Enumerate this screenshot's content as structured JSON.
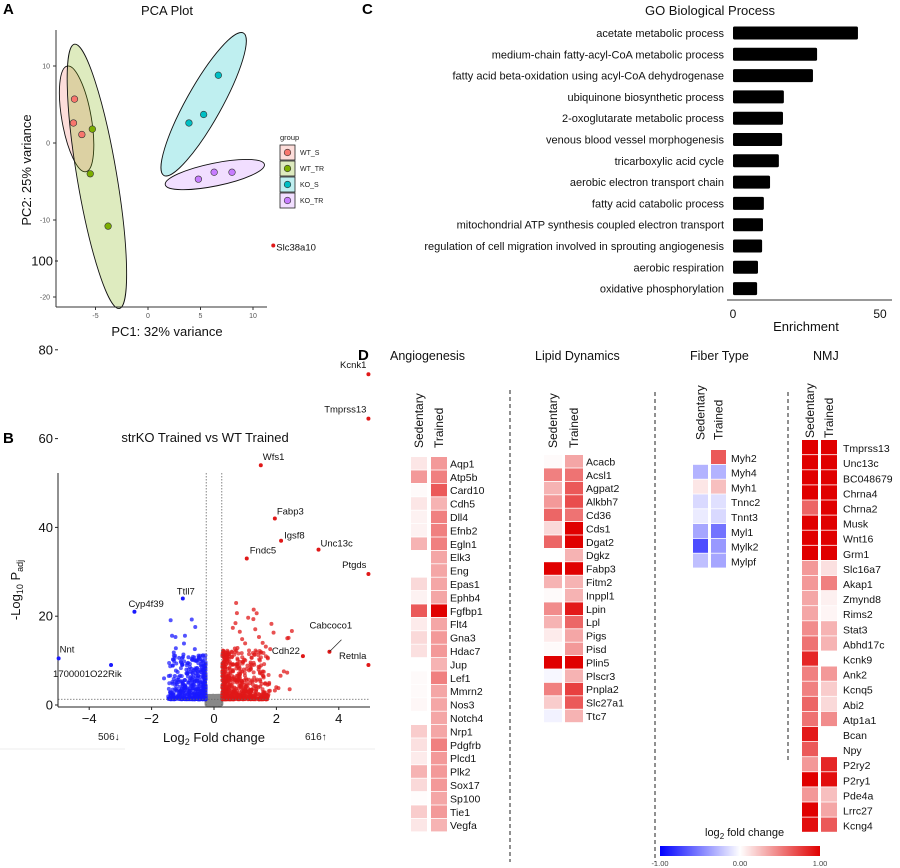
{
  "panel_letters": {
    "a": "A",
    "b": "B",
    "c": "C",
    "d": "D"
  },
  "chart_data": [
    {
      "id": "pca",
      "type": "scatter",
      "title": "PCA Plot",
      "xlabel": "PC1: 32% variance",
      "ylabel": "PC2: 25% variance",
      "xlim": [
        -8.5,
        11
      ],
      "ylim": [
        -21.5,
        14
      ],
      "xticks": [
        -5,
        0,
        5,
        10
      ],
      "yticks": [
        10,
        0,
        -10,
        -20
      ],
      "grid": false,
      "legend": {
        "title": "group",
        "placement": "right"
      },
      "ellipses": true,
      "series": [
        {
          "name": "WT_S",
          "color": "#F8766D",
          "points": [
            [
              -7.0,
              5.7
            ],
            [
              -7.1,
              2.6
            ],
            [
              -6.3,
              1.1
            ]
          ]
        },
        {
          "name": "WT_TR",
          "color": "#7CAE00",
          "points": [
            [
              -5.3,
              1.8
            ],
            [
              -5.5,
              -4.0
            ],
            [
              -3.8,
              -10.8
            ]
          ]
        },
        {
          "name": "KO_S",
          "color": "#00BFC4",
          "points": [
            [
              3.9,
              2.6
            ],
            [
              5.3,
              3.7
            ],
            [
              6.7,
              8.8
            ]
          ]
        },
        {
          "name": "KO_TR",
          "color": "#C77CFF",
          "points": [
            [
              4.8,
              -4.7
            ],
            [
              6.3,
              -3.8
            ],
            [
              8.0,
              -3.8
            ]
          ]
        }
      ]
    },
    {
      "id": "volcano",
      "type": "scatter",
      "title": "strKO Trained vs WT Trained",
      "xlabel": "Log2 Fold change",
      "ylabel": "-Log10 Padj",
      "xlim": [
        -5,
        5
      ],
      "ylim": [
        0,
        105
      ],
      "xticks": [
        -4,
        -2,
        0,
        2,
        4
      ],
      "yticks": [
        0,
        20,
        40,
        60,
        80,
        100
      ],
      "fc_threshold": 0.25,
      "padj_threshold_line": 1.3,
      "colors": {
        "down": "#1a1aff",
        "up": "#e01818",
        "ns": "#888888"
      },
      "counts": {
        "down": "506↓",
        "up": "616↑"
      },
      "labeled_points": [
        {
          "gene": "Slc38a10",
          "x": 1.9,
          "y": 103.5
        },
        {
          "gene": "Kcnk1",
          "x": 4.95,
          "y": 74.5
        },
        {
          "gene": "Tmprss13",
          "x": 4.95,
          "y": 64.5
        },
        {
          "gene": "Wfs1",
          "x": 1.5,
          "y": 54
        },
        {
          "gene": "Fabp3",
          "x": 1.95,
          "y": 42
        },
        {
          "gene": "Igsf8",
          "x": 2.15,
          "y": 37
        },
        {
          "gene": "Fndc5",
          "x": 1.05,
          "y": 33
        },
        {
          "gene": "Unc13c",
          "x": 3.35,
          "y": 35
        },
        {
          "gene": "Ptgds",
          "x": 4.95,
          "y": 29.5
        },
        {
          "gene": "Cabcoco1",
          "x": 3.7,
          "y": 12
        },
        {
          "gene": "Cdh22",
          "x": 2.85,
          "y": 11
        },
        {
          "gene": "Retnla",
          "x": 4.95,
          "y": 9
        },
        {
          "gene": "Cyp4f39",
          "x": -2.55,
          "y": 21
        },
        {
          "gene": "Ttll7",
          "x": -1.0,
          "y": 24
        },
        {
          "gene": "Nnt",
          "x": -4.98,
          "y": 10.5
        },
        {
          "gene": "1700001O22Rik",
          "x": -3.3,
          "y": 9
        }
      ]
    },
    {
      "id": "go",
      "type": "bar",
      "orientation": "horizontal",
      "title": "GO Biological Process",
      "xlabel": "Enrichment",
      "xlim": [
        0,
        55
      ],
      "xticks": [
        0,
        50
      ],
      "color": "#000000",
      "categories": [
        "acetate metabolic process",
        "medium-chain fatty-acyl-CoA metabolic process",
        "fatty acid beta-oxidation using acyl-CoA dehydrogenase",
        "ubiquinone biosynthetic process",
        "2-oxoglutarate metabolic process",
        "venous blood vessel morphogenesis",
        "tricarboxylic acid cycle",
        "aerobic electron transport chain",
        "fatty acid catabolic process",
        "mitochondrial ATP synthesis coupled electron transport",
        "regulation of cell migration involved in sprouting angiogenesis",
        "aerobic respiration",
        "oxidative phosphorylation"
      ],
      "values": [
        42.5,
        28.6,
        27.2,
        17.3,
        17.0,
        16.7,
        15.6,
        12.6,
        10.5,
        10.2,
        9.9,
        8.5,
        8.2
      ]
    },
    {
      "id": "heatmaps",
      "type": "heatmap",
      "columns": [
        "Sedentary",
        "Trained"
      ],
      "colorbar": {
        "label": "log2 fold change",
        "min": -1,
        "max": 1,
        "tick_labels": [
          "-1.00",
          "0.00",
          "1.00"
        ],
        "low": "#0000ff",
        "mid": "#ffffff",
        "high": "#e00000"
      },
      "panels": [
        {
          "title": "Angiogenesis",
          "genes": [
            "Aqp1",
            "Atp5b",
            "Card10",
            "Cdh5",
            "Dll4",
            "Efnb2",
            "Egln1",
            "Elk3",
            "Eng",
            "Epas1",
            "Ephb4",
            "Fgfbp1",
            "Flt4",
            "Gna3",
            "Hdac7",
            "Jup",
            "Lef1",
            "Mmrn2",
            "Nos3",
            "Notch4",
            "Nrp1",
            "Pdgfrb",
            "Plcd1",
            "Plk2",
            "Sox17",
            "Sp100",
            "Tie1",
            "Vegfa"
          ],
          "values": [
            [
              0.1,
              0.4
            ],
            [
              0.4,
              0.5
            ],
            [
              0.02,
              0.65
            ],
            [
              0.1,
              0.3
            ],
            [
              0.05,
              0.5
            ],
            [
              0.05,
              0.5
            ],
            [
              0.3,
              0.5
            ],
            [
              0,
              0.35
            ],
            [
              0,
              0.35
            ],
            [
              0.15,
              0.35
            ],
            [
              0.05,
              0.35
            ],
            [
              0.65,
              1
            ],
            [
              0.08,
              0.35
            ],
            [
              0.15,
              0.4
            ],
            [
              0.12,
              0.4
            ],
            [
              0,
              0.3
            ],
            [
              0.02,
              0.5
            ],
            [
              0.02,
              0.35
            ],
            [
              0.03,
              0.35
            ],
            [
              0,
              0.35
            ],
            [
              0.2,
              0.35
            ],
            [
              0.12,
              0.5
            ],
            [
              0.08,
              0.4
            ],
            [
              0.3,
              0.4
            ],
            [
              0.15,
              0.4
            ],
            [
              0.01,
              0.35
            ],
            [
              0.2,
              0.4
            ],
            [
              0.1,
              0.3
            ]
          ]
        },
        {
          "title": "Lipid Dynamics",
          "genes": [
            "Acacb",
            "Acsl1",
            "Agpat2",
            "Alkbh7",
            "Cd36",
            "Cds1",
            "Dgat2",
            "Dgkz",
            "Fabp3",
            "Fitm2",
            "Inppl1",
            "Lpin",
            "Lpl",
            "Pigs",
            "Pisd",
            "Plin5",
            "Plscr3",
            "Pnpla2",
            "Slc27a1",
            "Ttc7"
          ],
          "values": [
            [
              0.02,
              0.35
            ],
            [
              0.5,
              0.55
            ],
            [
              0.3,
              0.65
            ],
            [
              0.4,
              0.7
            ],
            [
              0.6,
              0.55
            ],
            [
              0.15,
              1
            ],
            [
              0.6,
              1
            ],
            [
              0,
              0.3
            ],
            [
              1,
              1
            ],
            [
              0.3,
              0.3
            ],
            [
              0.02,
              0.3
            ],
            [
              0.45,
              0.9
            ],
            [
              0.3,
              0.6
            ],
            [
              0.08,
              0.35
            ],
            [
              0.02,
              0.4
            ],
            [
              1,
              1
            ],
            [
              -0.03,
              0.3
            ],
            [
              0.5,
              0.75
            ],
            [
              0.2,
              0.65
            ],
            [
              -0.05,
              0.3
            ]
          ]
        },
        {
          "title": "Fiber Type",
          "genes": [
            "Myh2",
            "Myh4",
            "Myh1",
            "Tnnc2",
            "Tnnt3",
            "Myl1",
            "Mylk2",
            "Mylpf"
          ],
          "values": [
            [
              0,
              0.65
            ],
            [
              -0.3,
              -0.3
            ],
            [
              0.1,
              0.25
            ],
            [
              -0.15,
              -0.12
            ],
            [
              -0.08,
              -0.15
            ],
            [
              -0.35,
              -0.55
            ],
            [
              -0.7,
              -0.4
            ],
            [
              -0.25,
              -0.35
            ]
          ]
        },
        {
          "title": "NMJ",
          "genes": [
            "Tmprss13",
            "Unc13c",
            "BC048679",
            "Chrna4",
            "Chrna2",
            "Musk",
            "Wnt16",
            "Grm1",
            "Slc16a7",
            "Akap1",
            "Zmynd8",
            "Rims2",
            "Stat3",
            "Abhd17c",
            "Kcnk9",
            "Ank2",
            "Kcnq5",
            "Abi2",
            "Atp1a1",
            "Bcan",
            "Npy",
            "P2ry2",
            "P2ry1",
            "Pde4a",
            "Lrrc27",
            "Kcng4"
          ],
          "values": [
            [
              1,
              1
            ],
            [
              1,
              1
            ],
            [
              1,
              1
            ],
            [
              1,
              1
            ],
            [
              0.6,
              1
            ],
            [
              1,
              1
            ],
            [
              1,
              1
            ],
            [
              1,
              1
            ],
            [
              0.4,
              0.12
            ],
            [
              0.4,
              0.5
            ],
            [
              0.35,
              0.06
            ],
            [
              0.35,
              0.04
            ],
            [
              0.45,
              0.3
            ],
            [
              0.55,
              0.3
            ],
            [
              0.85,
              0
            ],
            [
              0.5,
              0.4
            ],
            [
              0.5,
              0.2
            ],
            [
              0.6,
              0.15
            ],
            [
              0.55,
              0.45
            ],
            [
              0.9,
              0
            ],
            [
              0.65,
              0
            ],
            [
              0.4,
              0.85
            ],
            [
              1,
              0.95
            ],
            [
              0.4,
              0.25
            ],
            [
              1,
              0.35
            ],
            [
              0.95,
              0.65
            ]
          ]
        }
      ]
    }
  ]
}
